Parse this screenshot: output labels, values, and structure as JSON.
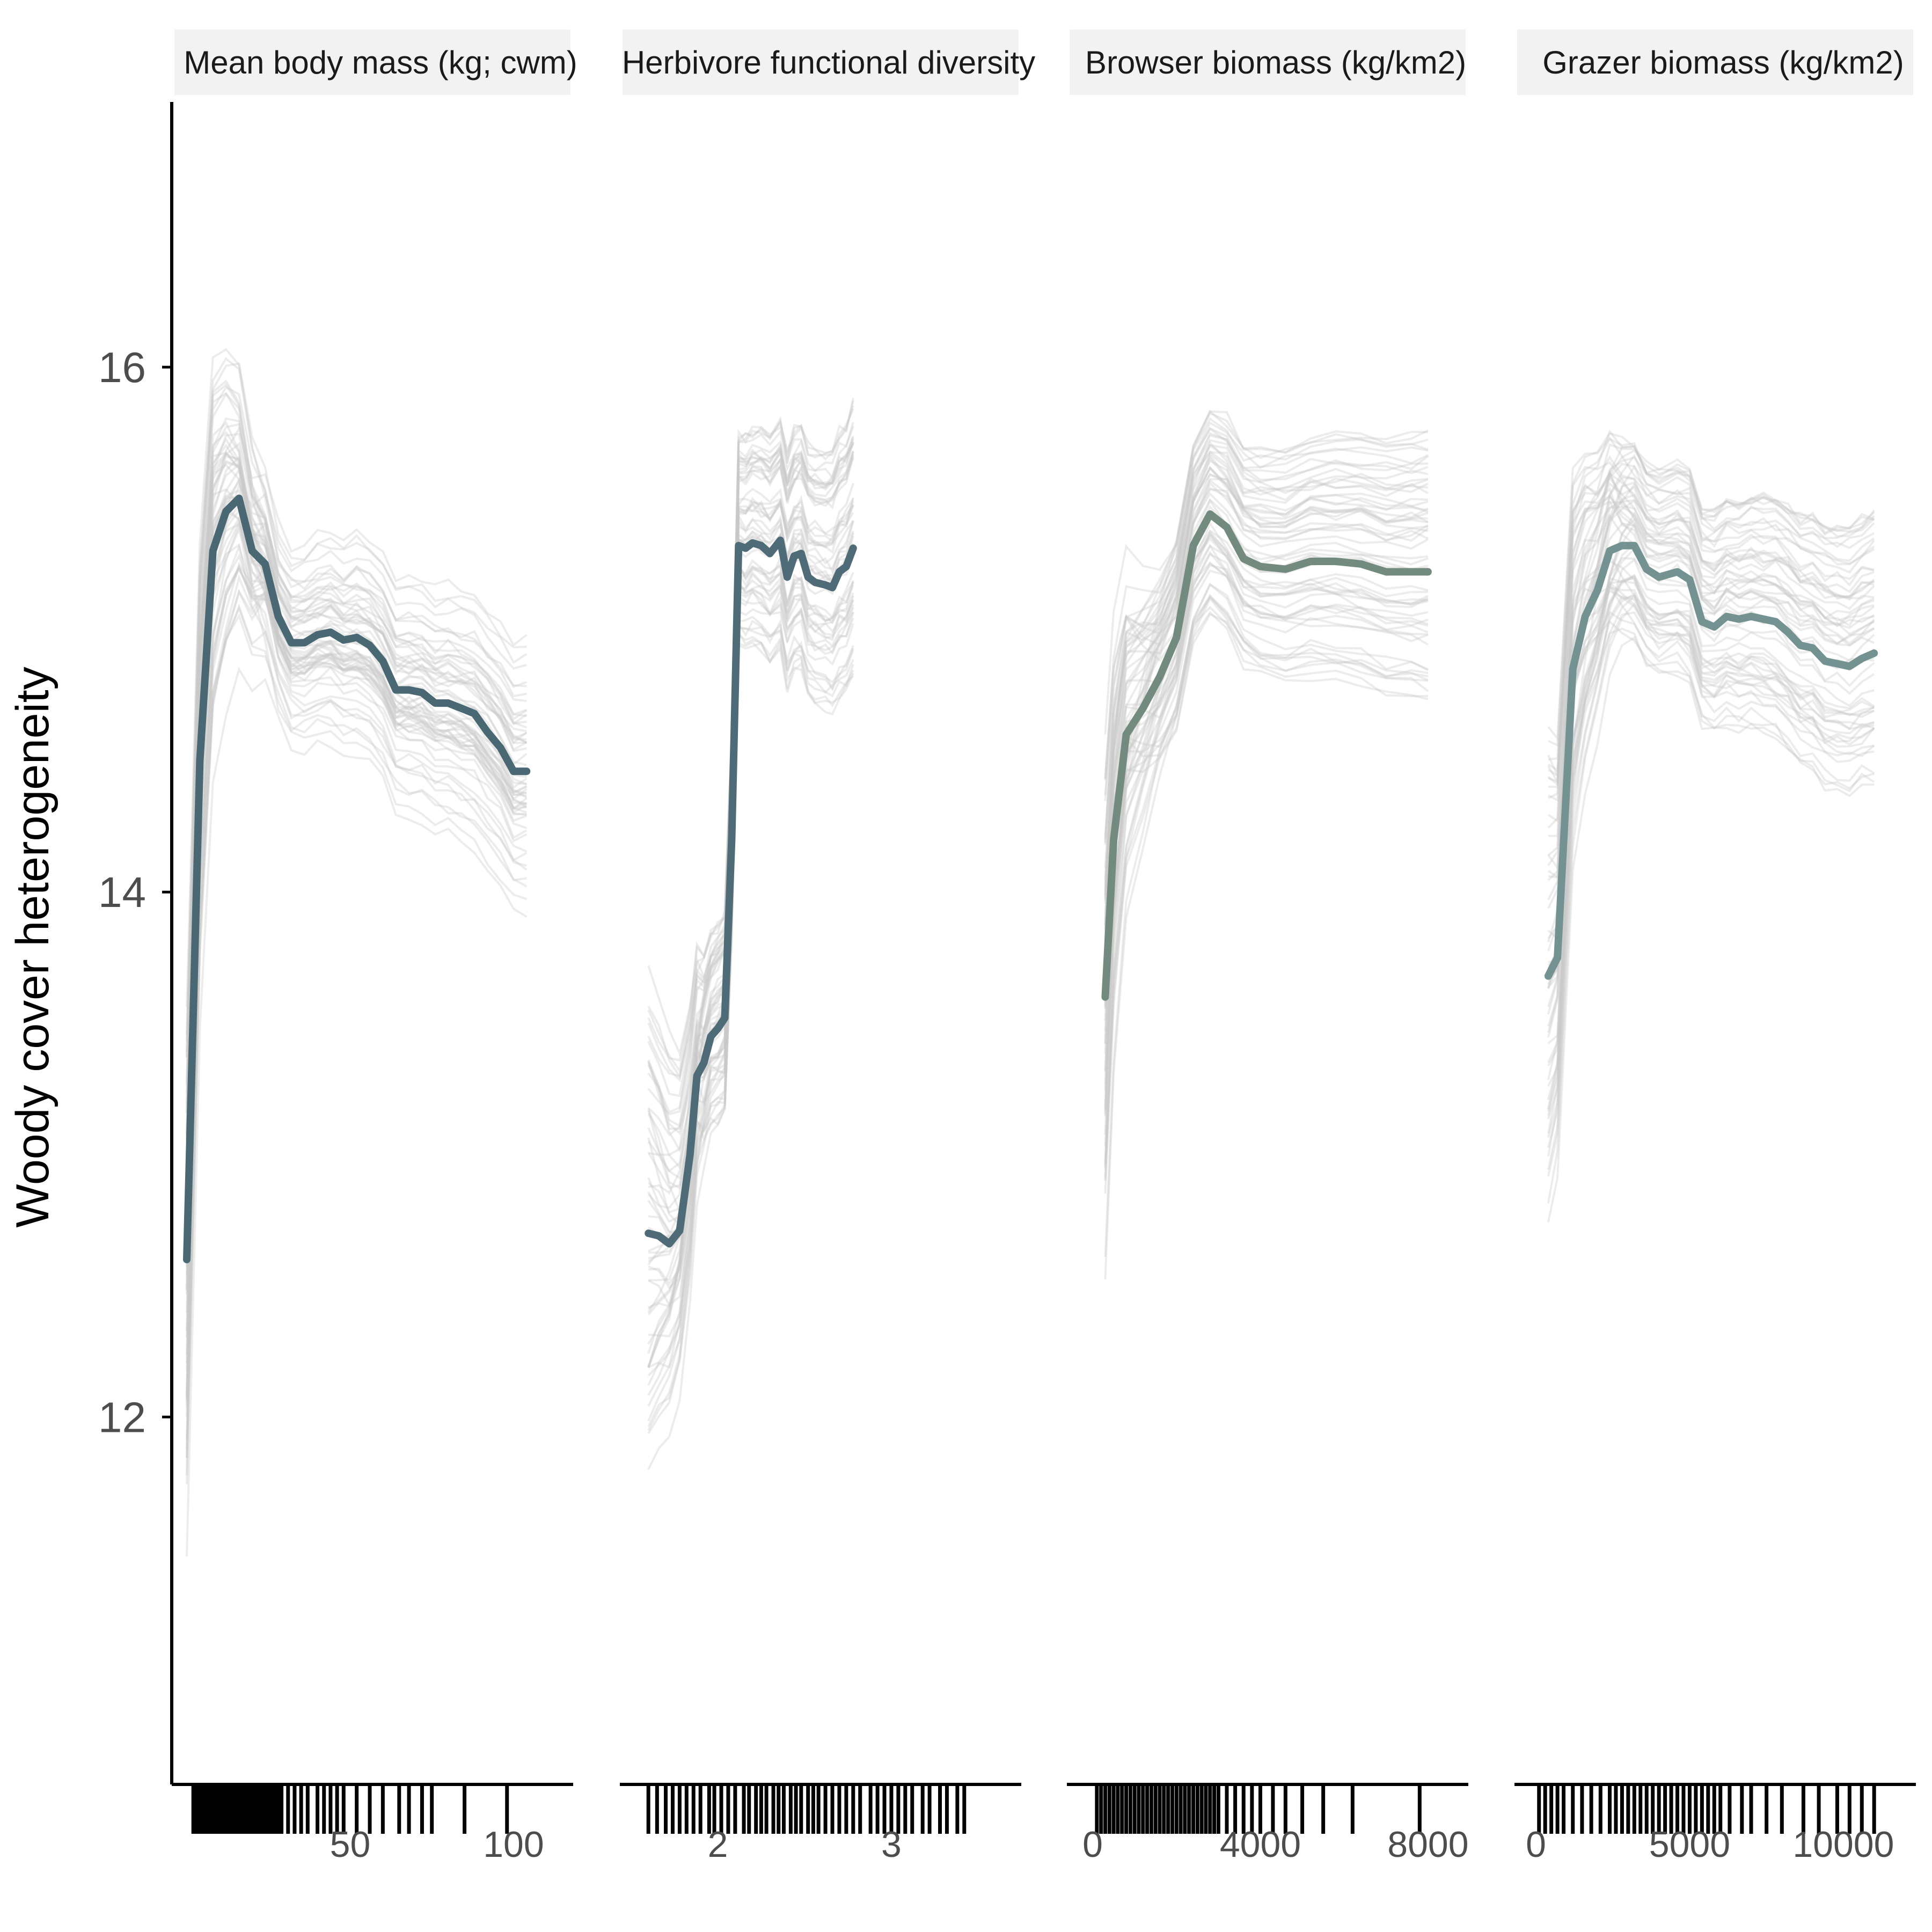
{
  "chart_data": {
    "type": "line",
    "ylabel": "Woody cover heterogeneity",
    "ylim": [
      10.6,
      17.0
    ],
    "yticks": [
      12,
      14,
      16
    ],
    "colors": {
      "ice_lines": "#c9c9c9",
      "axis": "#000000",
      "strip_bg": "#f2f2f2"
    },
    "panels": [
      {
        "strip": "Mean body mass (kg; cwm)",
        "xlim": [
          0,
          112
        ],
        "xticks": [
          50,
          100
        ],
        "line_color": "#4a6874",
        "pdp": [
          [
            0,
            12.6
          ],
          [
            4,
            14.5
          ],
          [
            8,
            15.3
          ],
          [
            12,
            15.45
          ],
          [
            16,
            15.5
          ],
          [
            20,
            15.3
          ],
          [
            24,
            15.25
          ],
          [
            28,
            15.05
          ],
          [
            32,
            14.95
          ],
          [
            36,
            14.95
          ],
          [
            40,
            14.98
          ],
          [
            44,
            14.99
          ],
          [
            48,
            14.96
          ],
          [
            52,
            14.97
          ],
          [
            56,
            14.94
          ],
          [
            60,
            14.88
          ],
          [
            64,
            14.77
          ],
          [
            68,
            14.77
          ],
          [
            72,
            14.76
          ],
          [
            76,
            14.72
          ],
          [
            80,
            14.72
          ],
          [
            84,
            14.7
          ],
          [
            88,
            14.68
          ],
          [
            92,
            14.61
          ],
          [
            96,
            14.55
          ],
          [
            100,
            14.46
          ],
          [
            104,
            14.46
          ]
        ],
        "rug": [
          2,
          3,
          4,
          5,
          6,
          7,
          8,
          9,
          10,
          11,
          12,
          13,
          14,
          15,
          16,
          17,
          18,
          19,
          20,
          21,
          22,
          23,
          24,
          25,
          26,
          27,
          28,
          29,
          31,
          33,
          35,
          37,
          40,
          42,
          44,
          46,
          48,
          52,
          56,
          60,
          65,
          68,
          72,
          75,
          85,
          98
        ]
      },
      {
        "strip": "Herbivore functional diversity",
        "xlim": [
          1.55,
          3.6
        ],
        "xticks": [
          2,
          3
        ],
        "line_color": "#4e6b77",
        "pdp": [
          [
            1.6,
            12.7
          ],
          [
            1.66,
            12.69
          ],
          [
            1.72,
            12.66
          ],
          [
            1.78,
            12.71
          ],
          [
            1.84,
            13.0
          ],
          [
            1.88,
            13.3
          ],
          [
            1.92,
            13.35
          ],
          [
            1.96,
            13.45
          ],
          [
            2.0,
            13.48
          ],
          [
            2.04,
            13.52
          ],
          [
            2.08,
            14.2
          ],
          [
            2.12,
            15.32
          ],
          [
            2.16,
            15.31
          ],
          [
            2.2,
            15.33
          ],
          [
            2.25,
            15.32
          ],
          [
            2.3,
            15.29
          ],
          [
            2.36,
            15.34
          ],
          [
            2.4,
            15.2
          ],
          [
            2.44,
            15.28
          ],
          [
            2.48,
            15.29
          ],
          [
            2.52,
            15.2
          ],
          [
            2.56,
            15.18
          ],
          [
            2.62,
            15.17
          ],
          [
            2.66,
            15.16
          ],
          [
            2.7,
            15.22
          ],
          [
            2.74,
            15.24
          ],
          [
            2.78,
            15.31
          ]
        ],
        "rug": [
          1.6,
          1.65,
          1.7,
          1.74,
          1.78,
          1.82,
          1.86,
          1.9,
          1.95,
          1.98,
          2.02,
          2.06,
          2.1,
          2.15,
          2.18,
          2.22,
          2.25,
          2.28,
          2.32,
          2.35,
          2.38,
          2.42,
          2.45,
          2.48,
          2.52,
          2.55,
          2.58,
          2.62,
          2.66,
          2.7,
          2.74,
          2.78,
          2.82,
          2.88,
          2.92,
          2.96,
          3.0,
          3.04,
          3.08,
          3.12,
          3.18,
          3.22,
          3.28,
          3.32,
          3.38,
          3.42
        ]
      },
      {
        "strip": "Browser biomass (kg/km2)",
        "xlim": [
          0,
          8500
        ],
        "xticks": [
          0,
          4000,
          8000
        ],
        "line_color": "#738a7e",
        "pdp": [
          [
            300,
            13.6
          ],
          [
            500,
            14.2
          ],
          [
            800,
            14.6
          ],
          [
            1200,
            14.7
          ],
          [
            1600,
            14.82
          ],
          [
            2000,
            14.97
          ],
          [
            2400,
            15.32
          ],
          [
            2800,
            15.44
          ],
          [
            3200,
            15.39
          ],
          [
            3600,
            15.27
          ],
          [
            4000,
            15.24
          ],
          [
            4600,
            15.23
          ],
          [
            5200,
            15.26
          ],
          [
            5800,
            15.26
          ],
          [
            6400,
            15.25
          ],
          [
            7000,
            15.22
          ],
          [
            7600,
            15.22
          ],
          [
            8000,
            15.22
          ]
        ],
        "rug": [
          100,
          200,
          300,
          400,
          500,
          600,
          700,
          800,
          900,
          1000,
          1100,
          1200,
          1300,
          1400,
          1500,
          1600,
          1700,
          1800,
          1900,
          2000,
          2100,
          2200,
          2300,
          2400,
          2500,
          2600,
          2700,
          2800,
          2900,
          3000,
          3200,
          3400,
          3600,
          3800,
          4000,
          4300,
          4600,
          5000,
          5500,
          6200,
          7800
        ]
      },
      {
        "strip": "Grazer biomass (kg/km2)",
        "xlim": [
          0,
          11800
        ],
        "xticks": [
          0,
          5000,
          10000
        ],
        "line_color": "#739291",
        "pdp": [
          [
            400,
            13.68
          ],
          [
            700,
            13.75
          ],
          [
            1200,
            14.85
          ],
          [
            1600,
            15.05
          ],
          [
            2000,
            15.15
          ],
          [
            2400,
            15.3
          ],
          [
            2800,
            15.32
          ],
          [
            3200,
            15.32
          ],
          [
            3600,
            15.23
          ],
          [
            4000,
            15.2
          ],
          [
            4600,
            15.22
          ],
          [
            5000,
            15.19
          ],
          [
            5400,
            15.03
          ],
          [
            5800,
            15.01
          ],
          [
            6200,
            15.05
          ],
          [
            6600,
            15.04
          ],
          [
            7000,
            15.05
          ],
          [
            7400,
            15.04
          ],
          [
            7800,
            15.03
          ],
          [
            8200,
            14.99
          ],
          [
            8600,
            14.94
          ],
          [
            9000,
            14.93
          ],
          [
            9400,
            14.88
          ],
          [
            9800,
            14.87
          ],
          [
            10200,
            14.86
          ],
          [
            10600,
            14.89
          ],
          [
            11000,
            14.91
          ]
        ],
        "rug": [
          100,
          300,
          500,
          700,
          900,
          1200,
          1500,
          1800,
          2100,
          2400,
          2600,
          2800,
          3000,
          3200,
          3400,
          3600,
          3800,
          4000,
          4200,
          4400,
          4600,
          4800,
          5000,
          5200,
          5400,
          5600,
          5800,
          6000,
          6300,
          6700,
          7000,
          7500,
          8000,
          8700,
          9200,
          9800,
          10200,
          10600,
          11000
        ]
      }
    ]
  }
}
